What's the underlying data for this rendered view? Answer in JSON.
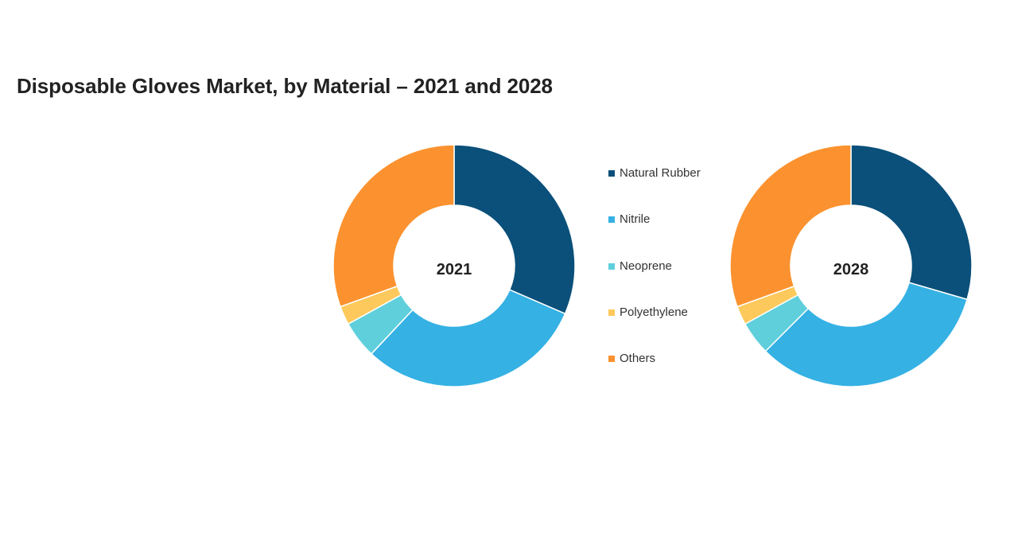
{
  "title": "Disposable Gloves Market, by Material – 2021 and 2028",
  "legend": {
    "items": [
      {
        "label": "Natural Rubber",
        "color": "#0a507a"
      },
      {
        "label": "Nitrile",
        "color": "#35b1e4"
      },
      {
        "label": "Neoprene",
        "color": "#5fcfdc"
      },
      {
        "label": "Polyethylene",
        "color": "#fdc95c"
      },
      {
        "label": "Others",
        "color": "#fb922f"
      }
    ]
  },
  "chart_data": [
    {
      "type": "pie",
      "title": "2021",
      "donut": true,
      "categories": [
        "Natural Rubber",
        "Nitrile",
        "Neoprene",
        "Polyethylene",
        "Others"
      ],
      "values": [
        31.5,
        30.5,
        5,
        2.5,
        30.5
      ],
      "colors": [
        "#0a507a",
        "#35b1e4",
        "#5fcfdc",
        "#fdc95c",
        "#fb922f"
      ]
    },
    {
      "type": "pie",
      "title": "2028",
      "donut": true,
      "categories": [
        "Natural Rubber",
        "Nitrile",
        "Neoprene",
        "Polyethylene",
        "Others"
      ],
      "values": [
        29.5,
        33,
        4.5,
        2.5,
        30.5
      ],
      "colors": [
        "#0a507a",
        "#35b1e4",
        "#5fcfdc",
        "#fdc95c",
        "#fb922f"
      ]
    }
  ]
}
